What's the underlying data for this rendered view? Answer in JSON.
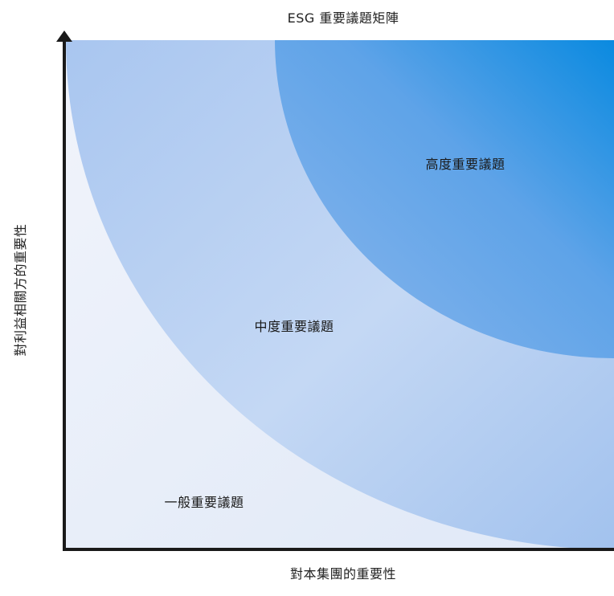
{
  "title": "ESG 重要議題矩陣",
  "x_axis_label": "對本集團的重要性",
  "y_axis_label": "對利益相關方的重要性",
  "zones": {
    "high": "高度重要議題",
    "medium": "中度重要議題",
    "general": "一般重要議題"
  },
  "colors": {
    "general_zone": "#e8eef9",
    "medium_zone": "#b6cff2",
    "high_zone": "#3a97e4",
    "axis": "#1a1a1a"
  }
}
